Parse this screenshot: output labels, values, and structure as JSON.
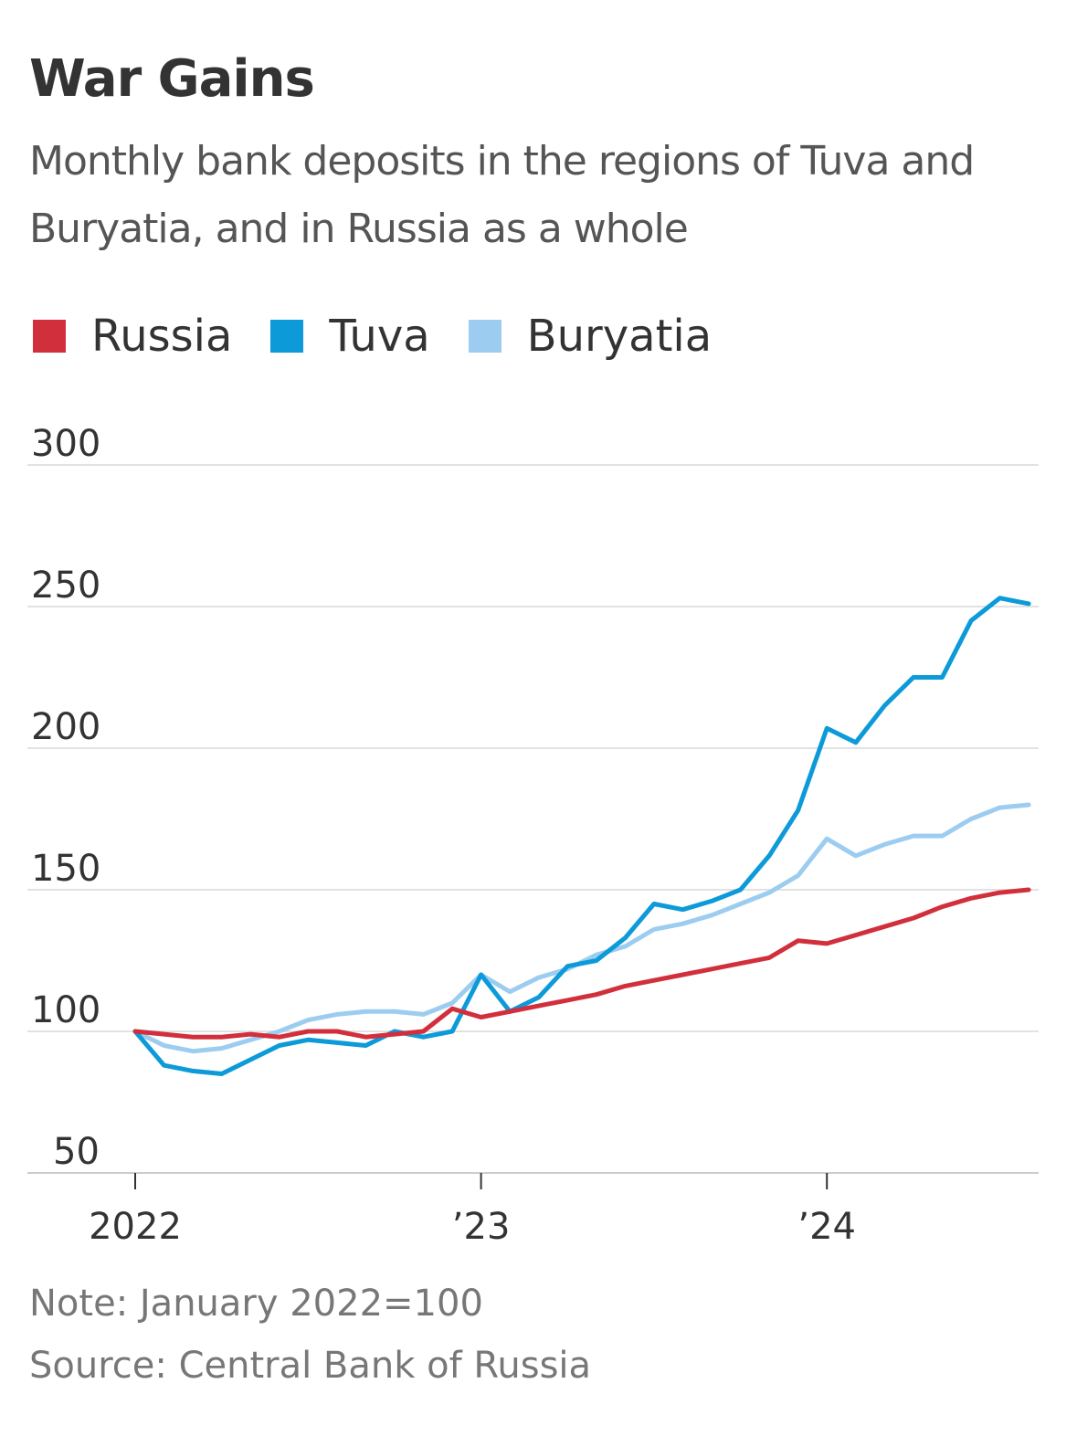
{
  "title": "War Gains",
  "subtitle": "Monthly bank deposits in the regions of Tuva and Buryatia, and in Russia as a whole",
  "legend": {
    "items": [
      {
        "label": "Russia",
        "color": "#d22f3c"
      },
      {
        "label": "Tuva",
        "color": "#0c9ad9"
      },
      {
        "label": "Buryatia",
        "color": "#9ccdf0"
      }
    ]
  },
  "note": "Note: January 2022=100",
  "source": "Source: Central Bank of Russia",
  "chart_data": {
    "type": "line",
    "title": "War Gains",
    "subtitle": "Monthly bank deposits in the regions of Tuva and Buryatia, and in Russia as a whole",
    "x": [
      "2022-01",
      "2022-02",
      "2022-03",
      "2022-04",
      "2022-05",
      "2022-06",
      "2022-07",
      "2022-08",
      "2022-09",
      "2022-10",
      "2022-11",
      "2022-12",
      "2023-01",
      "2023-02",
      "2023-03",
      "2023-04",
      "2023-05",
      "2023-06",
      "2023-07",
      "2023-08",
      "2023-09",
      "2023-10",
      "2023-11",
      "2023-12",
      "2024-01",
      "2024-02",
      "2024-03",
      "2024-04",
      "2024-05",
      "2024-06",
      "2024-07",
      "2024-08"
    ],
    "xticks": [
      {
        "x": "2022-01",
        "label": "2022"
      },
      {
        "x": "2023-01",
        "label": "’23"
      },
      {
        "x": "2024-01",
        "label": "’24"
      }
    ],
    "ylim": [
      50,
      300
    ],
    "yticks": [
      50,
      100,
      150,
      200,
      250,
      300
    ],
    "grid": true,
    "legend_position": "top",
    "series": [
      {
        "name": "Russia",
        "color": "#d22f3c",
        "values": [
          100,
          99,
          98,
          98,
          99,
          98,
          100,
          100,
          98,
          99,
          100,
          108,
          105,
          107,
          109,
          111,
          113,
          116,
          118,
          120,
          122,
          124,
          126,
          132,
          131,
          134,
          137,
          140,
          144,
          147,
          149,
          150
        ]
      },
      {
        "name": "Tuva",
        "color": "#0c9ad9",
        "values": [
          100,
          88,
          86,
          85,
          90,
          95,
          97,
          96,
          95,
          100,
          98,
          100,
          120,
          107,
          112,
          123,
          125,
          133,
          145,
          143,
          146,
          150,
          162,
          178,
          207,
          202,
          215,
          225,
          225,
          245,
          253,
          251
        ]
      },
      {
        "name": "Buryatia",
        "color": "#9ccdf0",
        "values": [
          100,
          95,
          93,
          94,
          97,
          100,
          104,
          106,
          107,
          107,
          106,
          110,
          120,
          114,
          119,
          122,
          127,
          130,
          136,
          138,
          141,
          145,
          149,
          155,
          168,
          162,
          166,
          169,
          169,
          175,
          179,
          180
        ]
      }
    ]
  }
}
